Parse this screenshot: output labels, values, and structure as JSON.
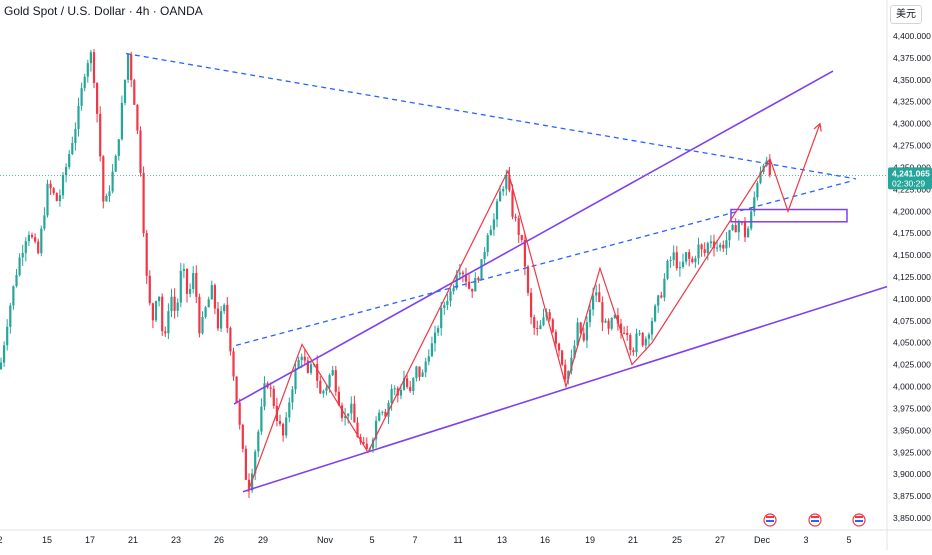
{
  "chart_title": "Gold Spot / U.S. Dollar · 4h · OANDA",
  "currency_label": "美元",
  "price_tag": {
    "price": "4,241.065",
    "countdown": "02:30:29"
  },
  "colors": {
    "up": "#26a69a",
    "down": "#f23645",
    "channel": "#7e3ff2",
    "trendline_dashed": "#2962ff",
    "zigzag": "#f23645",
    "tag_bg": "#26a69a",
    "dotted_last": "#26a69a"
  },
  "calendar_icons": [
    "event-flag-icon",
    "event-flag-icon",
    "event-flag-icon"
  ],
  "chart_data": {
    "type": "candlestick",
    "symbol": "XAUUSD",
    "timeframe": "4h",
    "y_axis": {
      "range": [
        3840,
        4420
      ],
      "ticks": [
        "3,850.000",
        "3,875.000",
        "3,900.000",
        "3,925.000",
        "3,950.000",
        "3,975.000",
        "4,000.000",
        "4,025.000",
        "4,050.000",
        "4,075.000",
        "4,100.000",
        "4,125.000",
        "4,150.000",
        "4,175.000",
        "4,200.000",
        "4,225.000",
        "4,250.000",
        "4,275.000",
        "4,300.000",
        "4,325.000",
        "4,350.000",
        "4,375.000",
        "4,400.000"
      ]
    },
    "x_axis": {
      "ticks": [
        {
          "label": "2",
          "pos": 0
        },
        {
          "label": "15",
          "pos": 47
        },
        {
          "label": "17",
          "pos": 90
        },
        {
          "label": "21",
          "pos": 133
        },
        {
          "label": "23",
          "pos": 176
        },
        {
          "label": "26",
          "pos": 219
        },
        {
          "label": "29",
          "pos": 263
        },
        {
          "label": "Nov",
          "pos": 325
        },
        {
          "label": "5",
          "pos": 372
        },
        {
          "label": "7",
          "pos": 415
        },
        {
          "label": "11",
          "pos": 458
        },
        {
          "label": "13",
          "pos": 502
        },
        {
          "label": "16",
          "pos": 545
        },
        {
          "label": "19",
          "pos": 590
        },
        {
          "label": "21",
          "pos": 633
        },
        {
          "label": "25",
          "pos": 677
        },
        {
          "label": "27",
          "pos": 720
        },
        {
          "label": "Dec",
          "pos": 762
        },
        {
          "label": "3",
          "pos": 806
        },
        {
          "label": "5",
          "pos": 849
        }
      ]
    },
    "price_path": [
      [
        0,
        4020
      ],
      [
        8,
        4080
      ],
      [
        18,
        4140
      ],
      [
        28,
        4180
      ],
      [
        38,
        4150
      ],
      [
        48,
        4230
      ],
      [
        58,
        4210
      ],
      [
        68,
        4260
      ],
      [
        78,
        4310
      ],
      [
        86,
        4370
      ],
      [
        92,
        4380
      ],
      [
        98,
        4300
      ],
      [
        104,
        4200
      ],
      [
        110,
        4230
      ],
      [
        116,
        4260
      ],
      [
        122,
        4320
      ],
      [
        128,
        4380
      ],
      [
        134,
        4330
      ],
      [
        140,
        4260
      ],
      [
        146,
        4130
      ],
      [
        152,
        4070
      ],
      [
        158,
        4120
      ],
      [
        164,
        4040
      ],
      [
        170,
        4110
      ],
      [
        176,
        4080
      ],
      [
        182,
        4140
      ],
      [
        188,
        4100
      ],
      [
        194,
        4130
      ],
      [
        200,
        4060
      ],
      [
        206,
        4090
      ],
      [
        212,
        4110
      ],
      [
        218,
        4070
      ],
      [
        224,
        4090
      ],
      [
        230,
        4050
      ],
      [
        236,
        3990
      ],
      [
        242,
        3930
      ],
      [
        248,
        3880
      ],
      [
        254,
        3920
      ],
      [
        260,
        3960
      ],
      [
        266,
        4010
      ],
      [
        272,
        3990
      ],
      [
        278,
        3960
      ],
      [
        284,
        3940
      ],
      [
        290,
        3990
      ],
      [
        296,
        4020
      ],
      [
        302,
        4040
      ],
      [
        308,
        4010
      ],
      [
        314,
        4030
      ],
      [
        320,
        3990
      ],
      [
        326,
        4000
      ],
      [
        332,
        4020
      ],
      [
        338,
        3990
      ],
      [
        344,
        3960
      ],
      [
        350,
        3980
      ],
      [
        356,
        3950
      ],
      [
        362,
        3930
      ],
      [
        368,
        3925
      ],
      [
        374,
        3950
      ],
      [
        380,
        3980
      ],
      [
        386,
        3970
      ],
      [
        392,
        4000
      ],
      [
        398,
        3990
      ],
      [
        404,
        4010
      ],
      [
        410,
        3990
      ],
      [
        416,
        4020
      ],
      [
        422,
        4010
      ],
      [
        428,
        4040
      ],
      [
        434,
        4050
      ],
      [
        440,
        4080
      ],
      [
        446,
        4100
      ],
      [
        452,
        4110
      ],
      [
        458,
        4140
      ],
      [
        464,
        4130
      ],
      [
        470,
        4110
      ],
      [
        476,
        4120
      ],
      [
        482,
        4140
      ],
      [
        488,
        4180
      ],
      [
        494,
        4190
      ],
      [
        500,
        4220
      ],
      [
        506,
        4240
      ],
      [
        512,
        4200
      ],
      [
        518,
        4180
      ],
      [
        524,
        4150
      ],
      [
        530,
        4080
      ],
      [
        536,
        4060
      ],
      [
        542,
        4070
      ],
      [
        548,
        4090
      ],
      [
        554,
        4060
      ],
      [
        560,
        4040
      ],
      [
        566,
        4010
      ],
      [
        572,
        4030
      ],
      [
        578,
        4070
      ],
      [
        584,
        4050
      ],
      [
        590,
        4090
      ],
      [
        596,
        4110
      ],
      [
        602,
        4080
      ],
      [
        608,
        4060
      ],
      [
        614,
        4080
      ],
      [
        620,
        4060
      ],
      [
        626,
        4070
      ],
      [
        632,
        4040
      ],
      [
        638,
        4060
      ],
      [
        644,
        4050
      ],
      [
        650,
        4070
      ],
      [
        656,
        4090
      ],
      [
        662,
        4110
      ],
      [
        668,
        4140
      ],
      [
        674,
        4150
      ],
      [
        680,
        4130
      ],
      [
        686,
        4150
      ],
      [
        692,
        4140
      ],
      [
        698,
        4160
      ],
      [
        704,
        4150
      ],
      [
        710,
        4170
      ],
      [
        716,
        4160
      ],
      [
        722,
        4160
      ],
      [
        728,
        4170
      ],
      [
        734,
        4180
      ],
      [
        740,
        4190
      ],
      [
        746,
        4170
      ],
      [
        752,
        4200
      ],
      [
        758,
        4240
      ],
      [
        764,
        4260
      ],
      [
        770,
        4241
      ]
    ],
    "annotations": {
      "channel_lines": [
        [
          [
            234,
            3980
          ],
          [
            833,
            4360
          ]
        ],
        [
          [
            243,
            3880
          ],
          [
            887,
            4114
          ]
        ]
      ],
      "dashed_lines": [
        [
          [
            126,
            4380
          ],
          [
            856,
            4237
          ]
        ],
        [
          [
            236,
            4047
          ],
          [
            853,
            4235
          ]
        ]
      ],
      "zigzag": [
        [
          [
            248,
            3880
          ],
          [
            302,
            4048
          ],
          [
            368,
            3925
          ],
          [
            508,
            4246
          ],
          [
            566,
            4000
          ],
          [
            600,
            4135
          ],
          [
            632,
            4025
          ],
          [
            652,
            4050
          ],
          [
            770,
            4260
          ]
        ]
      ],
      "small_zigzags": [
        [
          [
            596,
            4130
          ],
          [
            604,
            4122
          ]
        ],
        [
          [
            630,
            4030
          ],
          [
            638,
            4035
          ]
        ]
      ],
      "projection": [
        [
          770,
          4260
        ],
        [
          788,
          4200
        ],
        [
          820,
          4300
        ]
      ],
      "zone": {
        "x0": 731,
        "x1": 847,
        "top": 4202,
        "bottom": 4188,
        "fill": "#d6c3f7"
      }
    }
  }
}
